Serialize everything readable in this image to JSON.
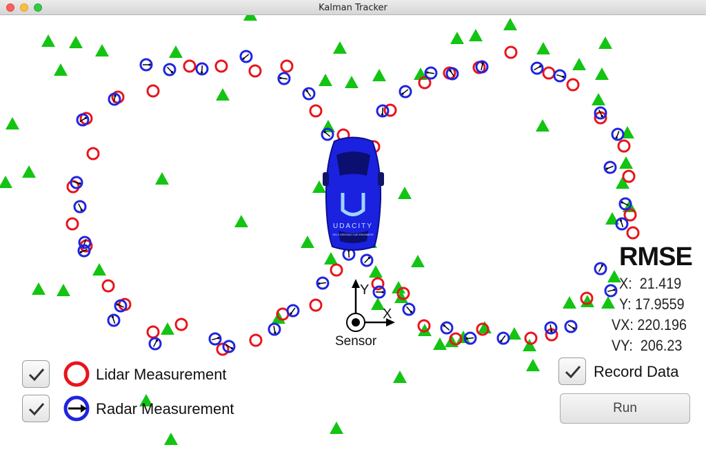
{
  "window": {
    "title": "Kalman Tracker"
  },
  "axes": {
    "x_label": "X",
    "y_label": "Y",
    "origin_label": "Sensor"
  },
  "car": {
    "logo_text": "UDACITY",
    "tagline": "SELF-DRIVING CAR ENGINEER"
  },
  "legend": {
    "lidar_label": "Lidar Measurement",
    "radar_label": "Radar Measurement",
    "lidar_checked": true,
    "radar_checked": true
  },
  "rmse": {
    "title": "RMSE",
    "x": "X:  21.419",
    "y": "Y: 17.9559",
    "vx": "VX: 220.196",
    "vy": "VY:  206.23"
  },
  "controls": {
    "record_label": "Record Data",
    "record_checked": true,
    "run_label": "Run"
  },
  "colors": {
    "lidar": "#e8141c",
    "radar": "#1f24e0",
    "estimate": "#13c413",
    "car": "#1a22e0"
  }
}
